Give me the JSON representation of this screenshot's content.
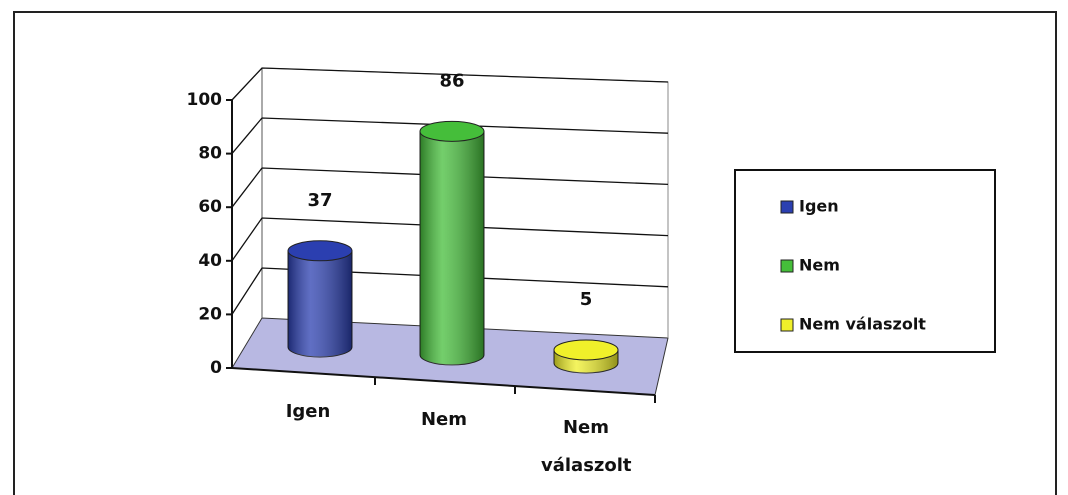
{
  "chart_data": {
    "type": "bar3d",
    "categories": [
      "Igen",
      "Nem",
      "Nem válaszolt"
    ],
    "values": [
      37,
      86,
      5
    ],
    "colors": [
      "#2b3fb0",
      "#45be3a",
      "#f0f02a"
    ],
    "ylim": [
      0,
      100
    ],
    "yticks": [
      0,
      20,
      40,
      60,
      80,
      100
    ],
    "grid": true,
    "legend": "right"
  }
}
